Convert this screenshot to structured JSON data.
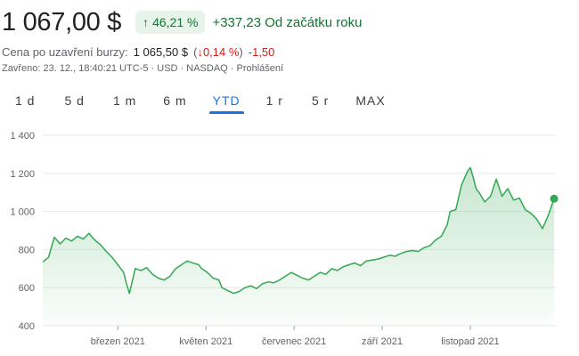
{
  "header": {
    "price": "1 067,00 $",
    "change_pct": "46,21 %",
    "change_abs": "+337,23 Od začátku roku",
    "prev_close_label": "Cena po uzavření burzy:",
    "prev_close_value": "1 065,50 $",
    "after_open": "(",
    "after_pct": "↓0,14 %",
    "after_close": ")",
    "after_abs": "-1,50",
    "meta": "Zavřeno: 23. 12., 18:40:21 UTC-5 · USD · NASDAQ · Prohlášení"
  },
  "tabs": [
    "1 d",
    "5 d",
    "1 m",
    "6 m",
    "YTD",
    "1 r",
    "5 r",
    "MAX"
  ],
  "active_tab": "YTD",
  "colors": {
    "up": "#137333",
    "line": "#34a853",
    "down": "#c5221f",
    "accent": "#1a73e8"
  },
  "chart_data": {
    "type": "area",
    "ylim": [
      400,
      1400
    ],
    "y_ticks": [
      1400,
      1200,
      1000,
      800,
      600,
      400
    ],
    "y_tick_labels": [
      "1 400",
      "1 200",
      "1 000",
      "800",
      "600",
      "400"
    ],
    "x_ticks": [
      {
        "label": "březen 2021",
        "x": 52
      },
      {
        "label": "květen 2021",
        "x": 113
      },
      {
        "label": "červenec 2021",
        "x": 174
      },
      {
        "label": "září 2021",
        "x": 235
      },
      {
        "label": "listopad 2021",
        "x": 296
      }
    ],
    "x_range": [
      0,
      354
    ],
    "values": [
      [
        0,
        735
      ],
      [
        4,
        760
      ],
      [
        8,
        865
      ],
      [
        12,
        830
      ],
      [
        16,
        860
      ],
      [
        20,
        845
      ],
      [
        24,
        870
      ],
      [
        28,
        855
      ],
      [
        32,
        885
      ],
      [
        36,
        850
      ],
      [
        40,
        825
      ],
      [
        44,
        790
      ],
      [
        48,
        760
      ],
      [
        52,
        720
      ],
      [
        56,
        680
      ],
      [
        58,
        620
      ],
      [
        60,
        570
      ],
      [
        64,
        700
      ],
      [
        68,
        690
      ],
      [
        72,
        705
      ],
      [
        76,
        670
      ],
      [
        80,
        650
      ],
      [
        84,
        640
      ],
      [
        88,
        660
      ],
      [
        92,
        700
      ],
      [
        96,
        720
      ],
      [
        100,
        740
      ],
      [
        104,
        730
      ],
      [
        108,
        720
      ],
      [
        110,
        700
      ],
      [
        114,
        680
      ],
      [
        118,
        650
      ],
      [
        122,
        640
      ],
      [
        124,
        600
      ],
      [
        128,
        585
      ],
      [
        132,
        570
      ],
      [
        136,
        580
      ],
      [
        140,
        600
      ],
      [
        144,
        610
      ],
      [
        148,
        595
      ],
      [
        152,
        620
      ],
      [
        156,
        630
      ],
      [
        160,
        625
      ],
      [
        164,
        640
      ],
      [
        168,
        660
      ],
      [
        172,
        680
      ],
      [
        176,
        665
      ],
      [
        180,
        650
      ],
      [
        184,
        640
      ],
      [
        188,
        660
      ],
      [
        192,
        680
      ],
      [
        196,
        670
      ],
      [
        200,
        700
      ],
      [
        204,
        690
      ],
      [
        208,
        710
      ],
      [
        212,
        720
      ],
      [
        216,
        730
      ],
      [
        220,
        715
      ],
      [
        224,
        740
      ],
      [
        228,
        745
      ],
      [
        232,
        750
      ],
      [
        236,
        760
      ],
      [
        240,
        770
      ],
      [
        244,
        765
      ],
      [
        248,
        780
      ],
      [
        252,
        790
      ],
      [
        256,
        795
      ],
      [
        260,
        790
      ],
      [
        264,
        810
      ],
      [
        268,
        820
      ],
      [
        272,
        850
      ],
      [
        276,
        870
      ],
      [
        280,
        930
      ],
      [
        282,
        1000
      ],
      [
        286,
        1010
      ],
      [
        290,
        1140
      ],
      [
        294,
        1210
      ],
      [
        296,
        1230
      ],
      [
        298,
        1180
      ],
      [
        300,
        1120
      ],
      [
        302,
        1100
      ],
      [
        306,
        1050
      ],
      [
        310,
        1080
      ],
      [
        314,
        1170
      ],
      [
        318,
        1080
      ],
      [
        322,
        1120
      ],
      [
        326,
        1060
      ],
      [
        330,
        1070
      ],
      [
        334,
        1010
      ],
      [
        338,
        990
      ],
      [
        342,
        960
      ],
      [
        346,
        910
      ],
      [
        350,
        980
      ],
      [
        354,
        1067
      ]
    ]
  }
}
